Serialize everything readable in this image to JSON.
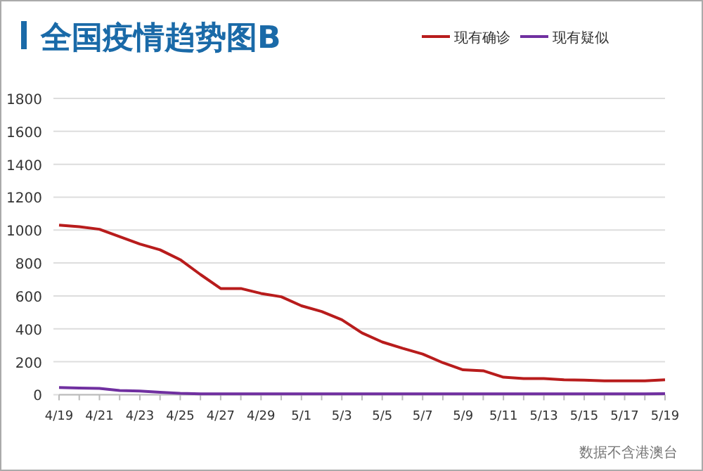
{
  "chart_data": {
    "type": "line",
    "title": "全国疫情趋势图B",
    "categories": [
      "4/19",
      null,
      "4/21",
      null,
      "4/23",
      null,
      "4/25",
      null,
      "4/27",
      null,
      "4/29",
      null,
      "5/1",
      null,
      "5/3",
      null,
      "5/5",
      null,
      "5/7",
      null,
      "5/9",
      null,
      "5/11",
      null,
      "5/13",
      null,
      "5/15",
      null,
      "5/17",
      null,
      "5/19"
    ],
    "series": [
      {
        "name": "现有确诊",
        "color": "#b81c1c",
        "values": [
          1030,
          1020,
          1005,
          960,
          915,
          880,
          820,
          730,
          645,
          645,
          615,
          595,
          540,
          505,
          455,
          375,
          320,
          282,
          247,
          194,
          151,
          145,
          106,
          98,
          98,
          90,
          88,
          84,
          84,
          84,
          90
        ]
      },
      {
        "name": "现有疑似",
        "color": "#7030a0",
        "values": [
          43,
          40,
          38,
          25,
          22,
          15,
          8,
          5,
          5,
          5,
          5,
          5,
          5,
          5,
          5,
          5,
          5,
          5,
          5,
          5,
          5,
          5,
          5,
          5,
          5,
          5,
          5,
          5,
          5,
          5,
          6
        ]
      }
    ],
    "ylim": [
      0,
      1800
    ],
    "yticks": [
      0,
      200,
      400,
      600,
      800,
      1000,
      1200,
      1400,
      1600,
      1800
    ],
    "grid": "y",
    "legend": "top right",
    "marker": "none",
    "line_style": "solid",
    "annotations": [
      "数据不含港澳台"
    ]
  }
}
